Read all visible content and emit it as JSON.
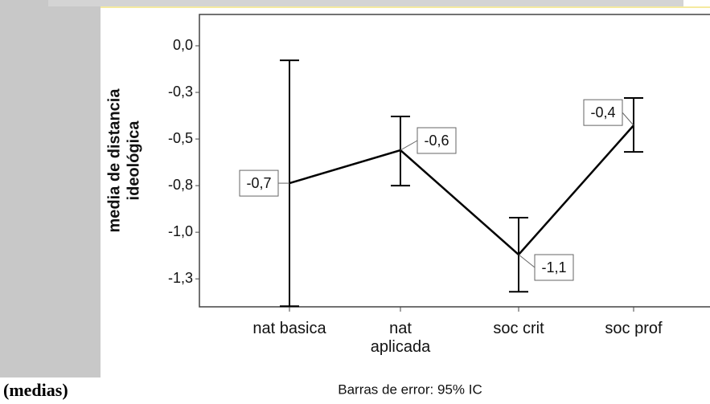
{
  "chart_data": {
    "type": "errorbar-line",
    "ylabel": [
      "media de distancia",
      "ideológica"
    ],
    "categories": [
      "nat basica",
      "nat aplicada",
      "soc crit",
      "soc prof"
    ],
    "series": [
      {
        "color": "#000000",
        "values": [
          -0.737,
          -0.56,
          -1.12,
          -0.427
        ],
        "value_labels": [
          "-0,7",
          "-0,6",
          "-1,1",
          "-0,4"
        ],
        "lower": [
          -1.397,
          -0.75,
          -1.319,
          -0.569
        ],
        "upper": [
          -0.078,
          -0.379,
          -0.922,
          -0.28
        ]
      }
    ],
    "ylim": [
      -1.4,
      0.168
    ],
    "yticks": [
      {
        "value": 0,
        "label": "0,0"
      },
      {
        "value": -0.25,
        "label": "-0,3"
      },
      {
        "value": -0.5,
        "label": "-0,5"
      },
      {
        "value": -0.75,
        "label": "-0,8"
      },
      {
        "value": -1,
        "label": "-1,0"
      },
      {
        "value": -1.25,
        "label": "-1,3"
      }
    ],
    "footnote": "Barras de error: 95% IC",
    "side_label": "(medias)"
  }
}
